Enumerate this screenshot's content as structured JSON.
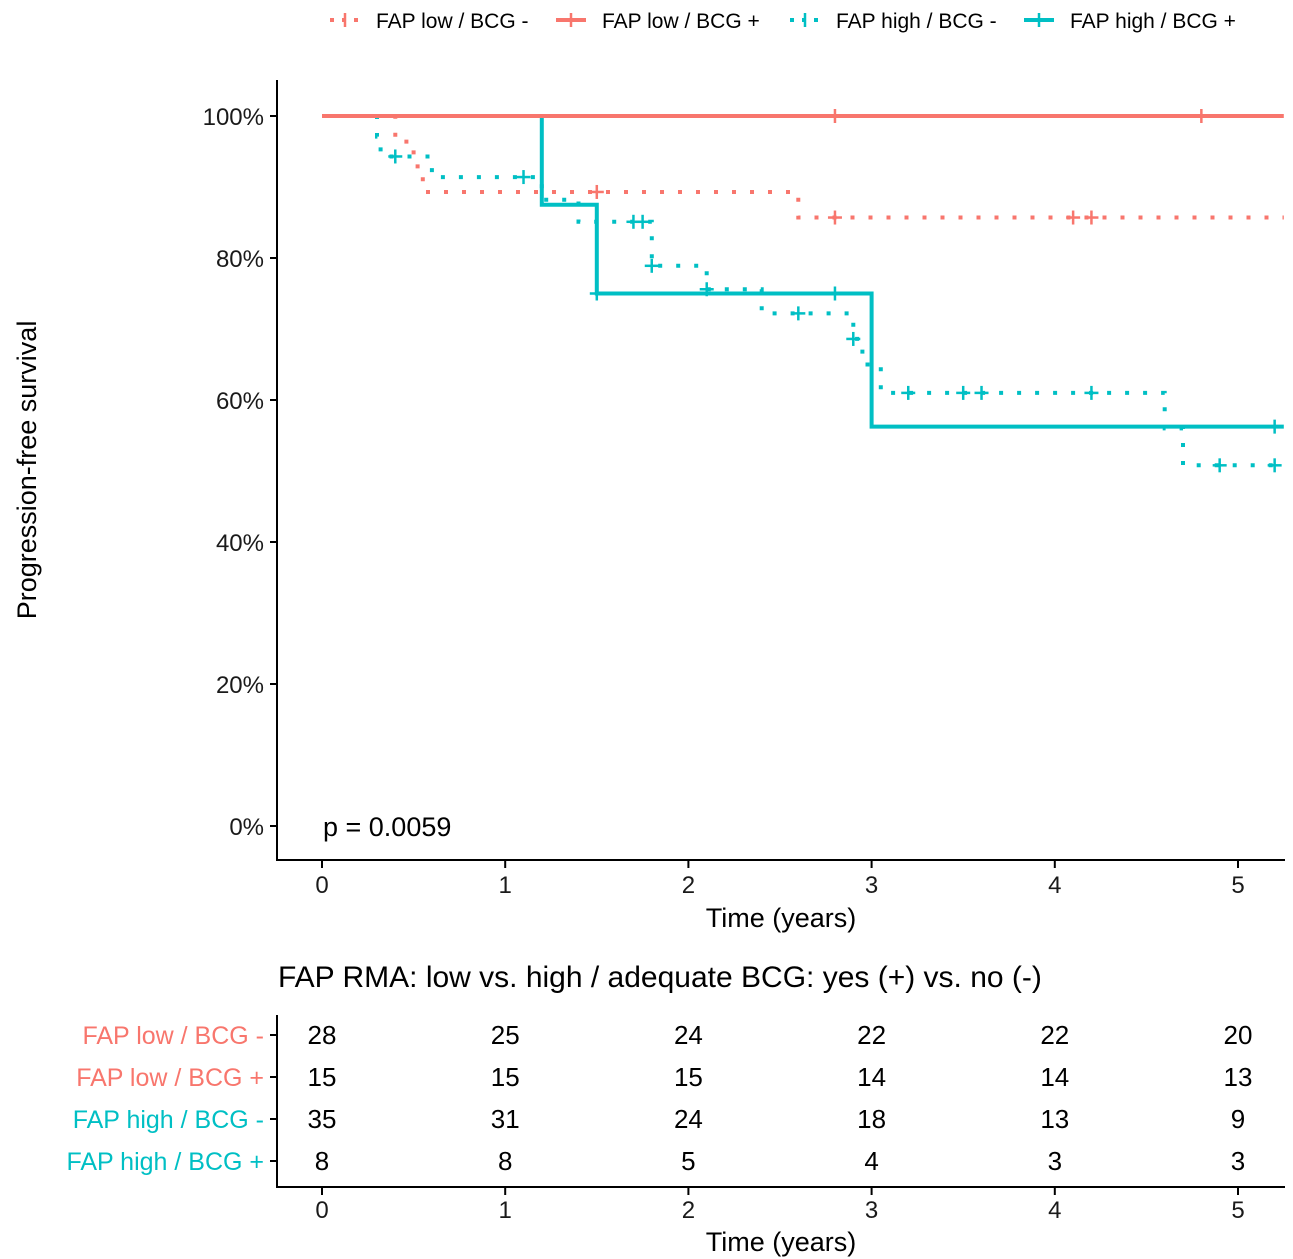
{
  "chart_data": [
    {
      "type": "line",
      "subtype": "kaplan-meier step",
      "xlabel": "Time (years)",
      "ylabel": "Progression-free survival",
      "xlim": [
        0,
        5.25
      ],
      "ylim": [
        0,
        1
      ],
      "x_ticks": [
        "0",
        "1",
        "2",
        "3",
        "4",
        "5"
      ],
      "y_ticks": [
        "0%",
        "20%",
        "40%",
        "60%",
        "80%",
        "100%"
      ],
      "grid": false,
      "legend_position": "top",
      "annotation": "p = 0.0059",
      "series": [
        {
          "name": "FAP low / BCG -",
          "color": "#F8766D",
          "linestyle": "dotted",
          "steps": [
            [
              0,
              1.0
            ],
            [
              0.4,
              0.964
            ],
            [
              0.5,
              0.929
            ],
            [
              0.55,
              0.893
            ],
            [
              2.6,
              0.857
            ],
            [
              5.25,
              0.857
            ]
          ],
          "censored": [
            [
              1.5,
              0.893
            ],
            [
              2.8,
              0.857
            ],
            [
              4.1,
              0.857
            ],
            [
              4.2,
              0.857
            ]
          ]
        },
        {
          "name": "FAP low / BCG +",
          "color": "#F8766D",
          "linestyle": "solid",
          "steps": [
            [
              0,
              1.0
            ],
            [
              5.25,
              1.0
            ]
          ],
          "censored": [
            [
              2.8,
              1.0
            ],
            [
              4.8,
              1.0
            ]
          ]
        },
        {
          "name": "FAP high / BCG -",
          "color": "#00BFC4",
          "linestyle": "dotted",
          "steps": [
            [
              0,
              1.0
            ],
            [
              0.3,
              0.971
            ],
            [
              0.32,
              0.943
            ],
            [
              0.6,
              0.914
            ],
            [
              1.2,
              0.882
            ],
            [
              1.4,
              0.851
            ],
            [
              1.8,
              0.82
            ],
            [
              1.8,
              0.789
            ],
            [
              2.1,
              0.756
            ],
            [
              2.4,
              0.722
            ],
            [
              2.9,
              0.686
            ],
            [
              2.95,
              0.65
            ],
            [
              3.05,
              0.61
            ],
            [
              4.6,
              0.56
            ],
            [
              4.7,
              0.508
            ],
            [
              5.25,
              0.508
            ]
          ],
          "censored": [
            [
              0.4,
              0.943
            ],
            [
              1.1,
              0.914
            ],
            [
              1.7,
              0.851
            ],
            [
              1.75,
              0.851
            ],
            [
              1.8,
              0.789
            ],
            [
              2.1,
              0.756
            ],
            [
              2.6,
              0.722
            ],
            [
              2.9,
              0.686
            ],
            [
              3.2,
              0.61
            ],
            [
              3.5,
              0.61
            ],
            [
              3.6,
              0.61
            ],
            [
              4.2,
              0.61
            ],
            [
              4.9,
              0.508
            ],
            [
              5.2,
              0.508
            ]
          ]
        },
        {
          "name": "FAP high / BCG +",
          "color": "#00BFC4",
          "linestyle": "solid",
          "steps": [
            [
              0,
              1.0
            ],
            [
              1.2,
              0.875
            ],
            [
              1.5,
              0.75
            ],
            [
              3.0,
              0.5625
            ],
            [
              5.25,
              0.5625
            ]
          ],
          "censored": [
            [
              1.5,
              0.75
            ],
            [
              2.8,
              0.75
            ],
            [
              5.2,
              0.5625
            ]
          ]
        }
      ]
    },
    {
      "type": "table",
      "title": "FAP RMA: low vs. high / adequate BCG: yes (+) vs. no (-)",
      "xlabel": "Time (years)",
      "x_ticks": [
        "0",
        "1",
        "2",
        "3",
        "4",
        "5"
      ],
      "rows": [
        {
          "label": "FAP low / BCG -",
          "color": "#F8766D",
          "values": [
            "28",
            "25",
            "24",
            "22",
            "22",
            "20"
          ]
        },
        {
          "label": "FAP low / BCG +",
          "color": "#F8766D",
          "values": [
            "15",
            "15",
            "15",
            "14",
            "14",
            "13"
          ]
        },
        {
          "label": "FAP high / BCG -",
          "color": "#00BFC4",
          "values": [
            "35",
            "31",
            "24",
            "18",
            "13",
            "9"
          ]
        },
        {
          "label": "FAP high / BCG +",
          "color": "#00BFC4",
          "values": [
            "8",
            "8",
            "5",
            "4",
            "3",
            "3"
          ]
        }
      ]
    }
  ]
}
